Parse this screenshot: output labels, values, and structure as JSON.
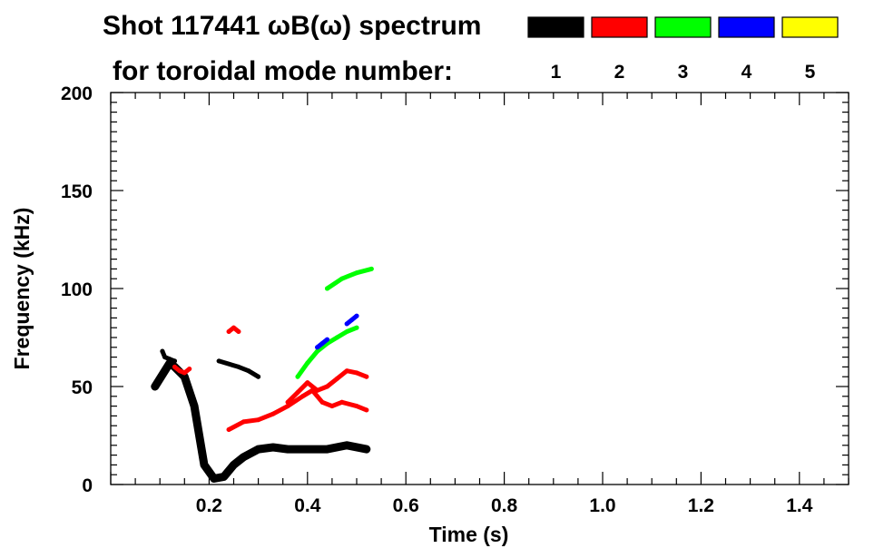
{
  "chart_data": {
    "type": "heatmap",
    "title_line1": "Shot 117441 ωB(ω) spectrum",
    "title_line2": "for toroidal mode number:",
    "xlabel": "Time (s)",
    "ylabel": "Frequency (kHz)",
    "xlim": [
      0.0,
      1.5
    ],
    "ylim": [
      0,
      200
    ],
    "x_ticks": [
      {
        "value": 0.2,
        "label": "0.2"
      },
      {
        "value": 0.4,
        "label": "0.4"
      },
      {
        "value": 0.6,
        "label": "0.6"
      },
      {
        "value": 0.8,
        "label": "0.8"
      },
      {
        "value": 1.0,
        "label": "1.0"
      },
      {
        "value": 1.2,
        "label": "1.2"
      },
      {
        "value": 1.4,
        "label": "1.4"
      }
    ],
    "y_ticks": [
      {
        "value": 0,
        "label": "0"
      },
      {
        "value": 50,
        "label": "50"
      },
      {
        "value": 100,
        "label": "100"
      },
      {
        "value": 150,
        "label": "150"
      },
      {
        "value": 200,
        "label": "200"
      }
    ],
    "legend_placement": "top-right",
    "legend": [
      {
        "label": "1",
        "color": "#000000"
      },
      {
        "label": "2",
        "color": "#ff0000"
      },
      {
        "label": "3",
        "color": "#00ff00"
      },
      {
        "label": "4",
        "color": "#0000ff"
      },
      {
        "label": "5",
        "color": "#ffff00"
      }
    ],
    "series": [
      {
        "mode": 1,
        "color": "#000000",
        "segments": [
          [
            [
              0.09,
              50
            ],
            [
              0.11,
              58
            ],
            [
              0.12,
              62
            ],
            [
              0.13,
              60
            ],
            [
              0.15,
              55
            ],
            [
              0.17,
              40
            ],
            [
              0.19,
              10
            ],
            [
              0.21,
              3
            ],
            [
              0.23,
              4
            ],
            [
              0.25,
              10
            ],
            [
              0.27,
              14
            ],
            [
              0.3,
              18
            ],
            [
              0.33,
              19
            ],
            [
              0.36,
              18
            ],
            [
              0.4,
              18
            ],
            [
              0.44,
              18
            ],
            [
              0.48,
              20
            ],
            [
              0.52,
              18
            ]
          ],
          [
            [
              0.105,
              68
            ],
            [
              0.11,
              65
            ],
            [
              0.12,
              64
            ],
            [
              0.13,
              63
            ]
          ],
          [
            [
              0.22,
              63
            ],
            [
              0.26,
              60
            ],
            [
              0.28,
              58
            ],
            [
              0.3,
              55
            ]
          ]
        ]
      },
      {
        "mode": 2,
        "color": "#ff0000",
        "segments": [
          [
            [
              0.24,
              28
            ],
            [
              0.27,
              32
            ],
            [
              0.3,
              33
            ],
            [
              0.33,
              36
            ],
            [
              0.36,
              40
            ],
            [
              0.39,
              45
            ],
            [
              0.41,
              48
            ],
            [
              0.43,
              42
            ],
            [
              0.45,
              40
            ],
            [
              0.47,
              42
            ],
            [
              0.5,
              40
            ],
            [
              0.52,
              38
            ]
          ],
          [
            [
              0.36,
              42
            ],
            [
              0.38,
              47
            ],
            [
              0.4,
              52
            ],
            [
              0.42,
              48
            ],
            [
              0.44,
              50
            ],
            [
              0.46,
              54
            ],
            [
              0.48,
              58
            ],
            [
              0.5,
              57
            ],
            [
              0.52,
              55
            ]
          ],
          [
            [
              0.13,
              60
            ],
            [
              0.14,
              58
            ],
            [
              0.15,
              57
            ],
            [
              0.16,
              59
            ]
          ],
          [
            [
              0.24,
              78
            ],
            [
              0.25,
              80
            ],
            [
              0.26,
              78
            ]
          ]
        ]
      },
      {
        "mode": 3,
        "color": "#00ff00",
        "segments": [
          [
            [
              0.38,
              55
            ],
            [
              0.4,
              62
            ],
            [
              0.42,
              68
            ],
            [
              0.44,
              72
            ],
            [
              0.46,
              75
            ],
            [
              0.48,
              78
            ],
            [
              0.5,
              80
            ]
          ],
          [
            [
              0.44,
              100
            ],
            [
              0.47,
              105
            ],
            [
              0.5,
              108
            ],
            [
              0.53,
              110
            ]
          ]
        ]
      },
      {
        "mode": 4,
        "color": "#0000ff",
        "segments": [
          [
            [
              0.42,
              70
            ],
            [
              0.43,
              72
            ],
            [
              0.44,
              74
            ]
          ],
          [
            [
              0.48,
              82
            ],
            [
              0.49,
              84
            ],
            [
              0.5,
              86
            ]
          ]
        ]
      },
      {
        "mode": 5,
        "color": "#ffff00",
        "segments": []
      }
    ]
  }
}
